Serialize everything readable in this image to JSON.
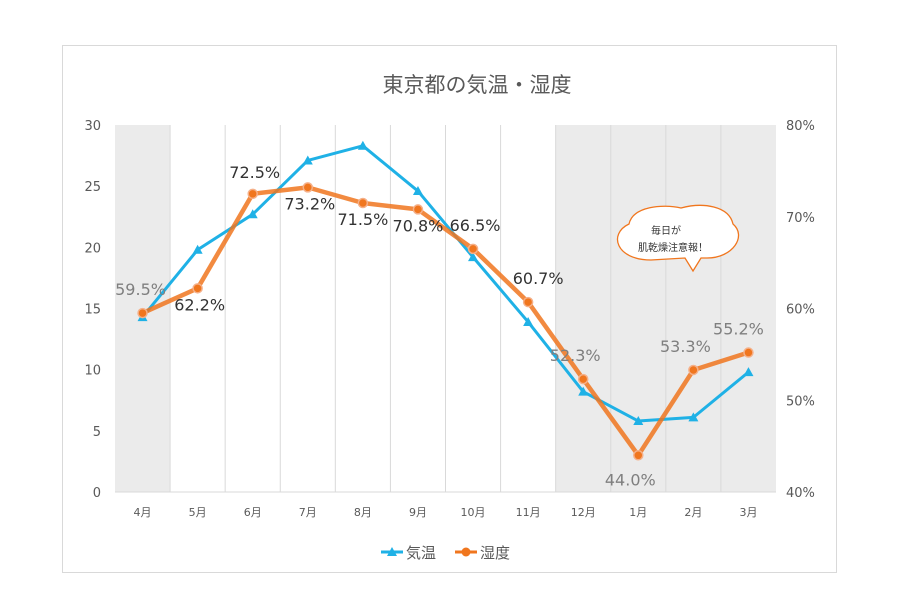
{
  "chart_data": {
    "type": "line",
    "title": "東京都の気温・湿度",
    "categories": [
      "4月",
      "5月",
      "6月",
      "7月",
      "8月",
      "9月",
      "10月",
      "11月",
      "12月",
      "1月",
      "2月",
      "3月"
    ],
    "series": [
      {
        "name": "気温",
        "axis": "left",
        "color": "#1fb1e6",
        "marker": "triangle",
        "values": [
          14.3,
          19.8,
          22.7,
          27.1,
          28.3,
          24.6,
          19.2,
          13.9,
          8.2,
          5.8,
          6.1,
          9.8
        ]
      },
      {
        "name": "湿度",
        "axis": "right",
        "color": "#f0761e",
        "marker": "circle",
        "values": [
          59.5,
          62.2,
          72.5,
          73.2,
          71.5,
          70.8,
          66.5,
          60.7,
          52.3,
          44.0,
          53.3,
          55.2
        ],
        "labels": [
          "59.5%",
          "62.2%",
          "72.5%",
          "73.2%",
          "71.5%",
          "70.8%",
          "66.5%",
          "60.7%",
          "52.3%",
          "44.0%",
          "53.3%",
          "55.2%"
        ]
      }
    ],
    "y_left": {
      "ticks": [
        "0",
        "5",
        "10",
        "15",
        "20",
        "25",
        "30"
      ],
      "min": 0,
      "max": 30
    },
    "y_right": {
      "ticks": [
        "40%",
        "50%",
        "60%",
        "70%",
        "80%"
      ],
      "min": 40,
      "max": 80
    },
    "shaded_months": [
      "4月",
      "12月",
      "1月",
      "2月",
      "3月"
    ],
    "shade_color": "#ebebeb",
    "legend": "bottom",
    "callout": {
      "line1": "毎日が",
      "line2": "肌乾燥注意報！",
      "near": "1月"
    }
  }
}
